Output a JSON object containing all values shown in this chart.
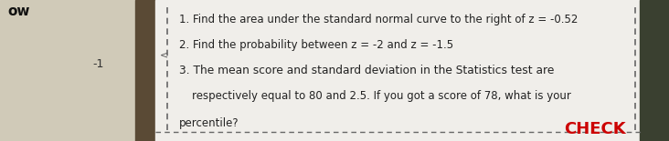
{
  "bg_whiteboard_color": "#d0cab8",
  "bg_divider_color": "#5a4a35",
  "panel_color": "#f0eeea",
  "right_edge_color": "#3a4030",
  "border_color": "#666666",
  "text_color": "#222222",
  "check_color": "#cc0000",
  "line1": "1. Find the area under the standard normal curve to the right of z = -0.52",
  "line2": "2. Find the probability between z = -2 and z = -1.5",
  "line3": "3. The mean score and standard deviation in the Statistics test are",
  "line4": "respectively equal to 80 and 2.5. If you got a score of 78, what is your",
  "line5": "percentile?",
  "check_text": "CHECK",
  "dashed_line_color": "#666666",
  "left_text_ow": "ow",
  "left_text_minus1": "-1",
  "figwidth": 7.32,
  "figheight": 1.55,
  "dpi": 100
}
